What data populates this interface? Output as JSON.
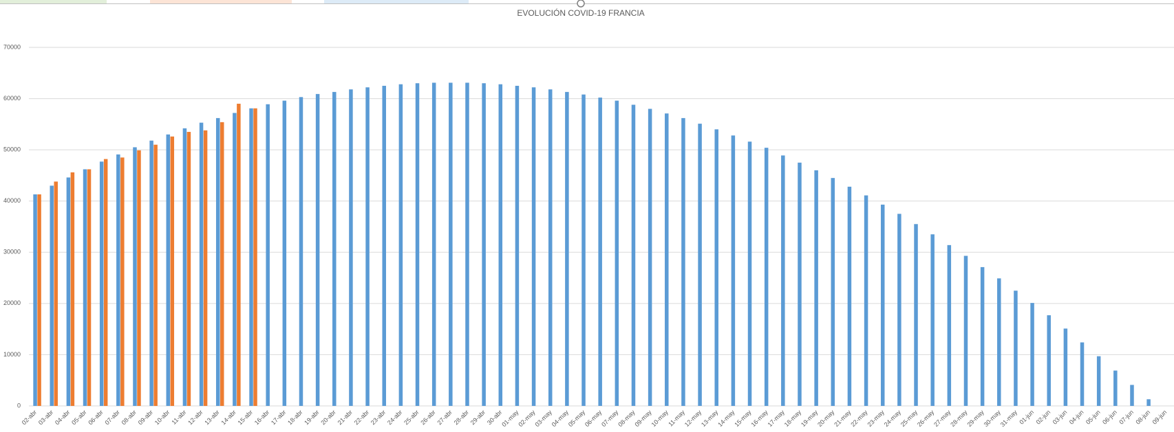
{
  "chart_data": {
    "type": "bar",
    "title": "EVOLUCIÓN COVID-19 FRANCIA",
    "categories": [
      "02-abr",
      "03-abr",
      "04-abr",
      "05-abr",
      "06-abr",
      "07-abr",
      "08-abr",
      "09-abr",
      "10-abr",
      "11-abr",
      "12-abr",
      "13-abr",
      "14-abr",
      "15-abr",
      "16-abr",
      "17-abr",
      "18-abr",
      "19-abr",
      "20-abr",
      "21-abr",
      "22-abr",
      "23-abr",
      "24-abr",
      "25-abr",
      "26-abr",
      "27-abr",
      "28-abr",
      "29-abr",
      "30-abr",
      "01-may",
      "02-may",
      "03-may",
      "04-may",
      "05-may",
      "06-may",
      "07-may",
      "08-may",
      "09-may",
      "10-may",
      "11-may",
      "12-may",
      "13-may",
      "14-may",
      "15-may",
      "16-may",
      "17-may",
      "18-may",
      "19-may",
      "20-may",
      "21-may",
      "22-may",
      "23-may",
      "24-may",
      "25-may",
      "26-may",
      "27-may",
      "28-may",
      "29-may",
      "30-may",
      "31-may",
      "01-jun",
      "02-jun",
      "03-jun",
      "04-jun",
      "05-jun",
      "06-jun",
      "07-jun",
      "08-jun",
      "09-jun"
    ],
    "series": [
      {
        "color": "#5b9bd5",
        "values": [
          41300,
          43000,
          44600,
          46200,
          47700,
          49100,
          50500,
          51800,
          53000,
          54200,
          55300,
          56200,
          57200,
          58100,
          58900,
          59600,
          60300,
          60900,
          61300,
          61800,
          62200,
          62500,
          62800,
          63000,
          63100,
          63100,
          63100,
          63000,
          62800,
          62500,
          62200,
          61800,
          61300,
          60800,
          60200,
          59600,
          58800,
          58000,
          57100,
          56200,
          55100,
          54000,
          52800,
          51600,
          50400,
          48900,
          47500,
          46000,
          44500,
          42800,
          41100,
          39300,
          37500,
          35500,
          33500,
          31400,
          29300,
          27100,
          24900,
          22500,
          20100,
          17700,
          15100,
          12400,
          9700,
          6900,
          4100,
          1300,
          null
        ]
      },
      {
        "color": "#ed7d31",
        "values": [
          41300,
          43800,
          45600,
          46200,
          48200,
          48500,
          49900,
          51000,
          52600,
          53500,
          53800,
          55400,
          59000,
          58100,
          null,
          null,
          null,
          null,
          null,
          null,
          null,
          null,
          null,
          null,
          null,
          null,
          null,
          null,
          null,
          null,
          null,
          null,
          null,
          null,
          null,
          null,
          null,
          null,
          null,
          null,
          null,
          null,
          null,
          null,
          null,
          null,
          null,
          null,
          null,
          null,
          null,
          null,
          null,
          null,
          null,
          null,
          null,
          null,
          null,
          null,
          null,
          null,
          null,
          null,
          null,
          null,
          null,
          null,
          null
        ]
      }
    ],
    "ylim": [
      0,
      70000
    ],
    "yticks": [
      0,
      10000,
      20000,
      30000,
      40000,
      50000,
      60000,
      70000
    ],
    "grid": true
  }
}
